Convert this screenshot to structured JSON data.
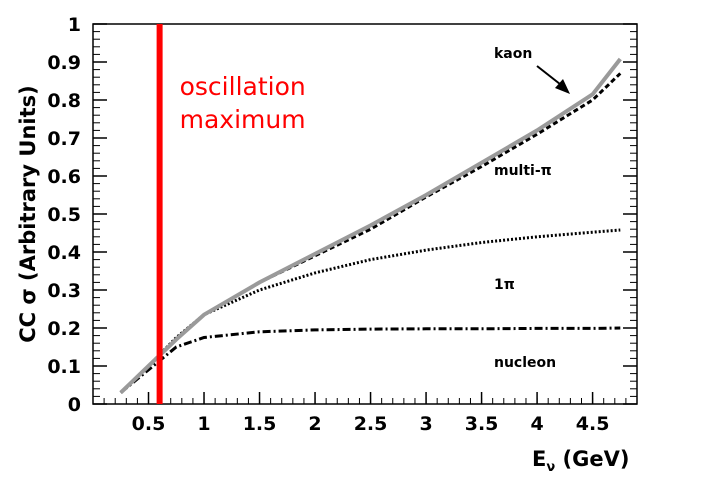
{
  "chart_data": {
    "type": "line",
    "xlabel_main": "E",
    "xlabel_sub": "ν",
    "xlabel_tail": " (GeV)",
    "ylabel": "CC σ (Arbitrary Units)",
    "xlim": [
      0,
      4.9
    ],
    "ylim": [
      0,
      1
    ],
    "xticks": [
      "0.5",
      "1",
      "1.5",
      "2",
      "2.5",
      "3",
      "3.5",
      "4",
      "4.5"
    ],
    "yticks": [
      "0",
      "0.1",
      "0.2",
      "0.3",
      "0.4",
      "0.5",
      "0.6",
      "0.7",
      "0.8",
      "0.9",
      "1"
    ],
    "grid": false,
    "series": [
      {
        "name": "nucleon",
        "style": "dashdot",
        "color": "#000000",
        "x": [
          0.25,
          0.5,
          0.75,
          1.0,
          1.5,
          2.0,
          2.5,
          3.0,
          3.5,
          4.0,
          4.5,
          4.75
        ],
        "y": [
          0.03,
          0.09,
          0.15,
          0.175,
          0.19,
          0.195,
          0.197,
          0.198,
          0.198,
          0.199,
          0.199,
          0.2
        ]
      },
      {
        "name": "1π",
        "style": "dotted",
        "color": "#000000",
        "x": [
          0.25,
          0.5,
          0.75,
          1.0,
          1.5,
          2.0,
          2.5,
          3.0,
          3.5,
          4.0,
          4.5,
          4.75
        ],
        "y": [
          0.03,
          0.1,
          0.175,
          0.235,
          0.3,
          0.345,
          0.38,
          0.405,
          0.425,
          0.44,
          0.452,
          0.458
        ]
      },
      {
        "name": "multi-π",
        "style": "dashed",
        "color": "#000000",
        "x": [
          0.25,
          0.5,
          0.75,
          1.0,
          1.5,
          2.0,
          2.5,
          3.0,
          3.5,
          4.0,
          4.5,
          4.75
        ],
        "y": [
          0.03,
          0.1,
          0.17,
          0.235,
          0.32,
          0.39,
          0.46,
          0.545,
          0.625,
          0.71,
          0.8,
          0.87
        ]
      },
      {
        "name": "kaon",
        "style": "solid",
        "color": "#9a9a9a",
        "x": [
          0.25,
          0.5,
          0.75,
          1.0,
          1.5,
          2.0,
          2.5,
          3.0,
          3.5,
          4.0,
          4.5,
          4.75
        ],
        "y": [
          0.03,
          0.1,
          0.17,
          0.235,
          0.32,
          0.395,
          0.47,
          0.55,
          0.635,
          0.72,
          0.815,
          0.908
        ]
      }
    ],
    "labels": {
      "kaon": "kaon",
      "multi": "multi-π",
      "onepi": "1π",
      "nucleon": "nucleon"
    },
    "oscillation": {
      "x": 0.6,
      "line1": "oscillation",
      "line2": "maximum",
      "color": "#ff0000"
    }
  }
}
